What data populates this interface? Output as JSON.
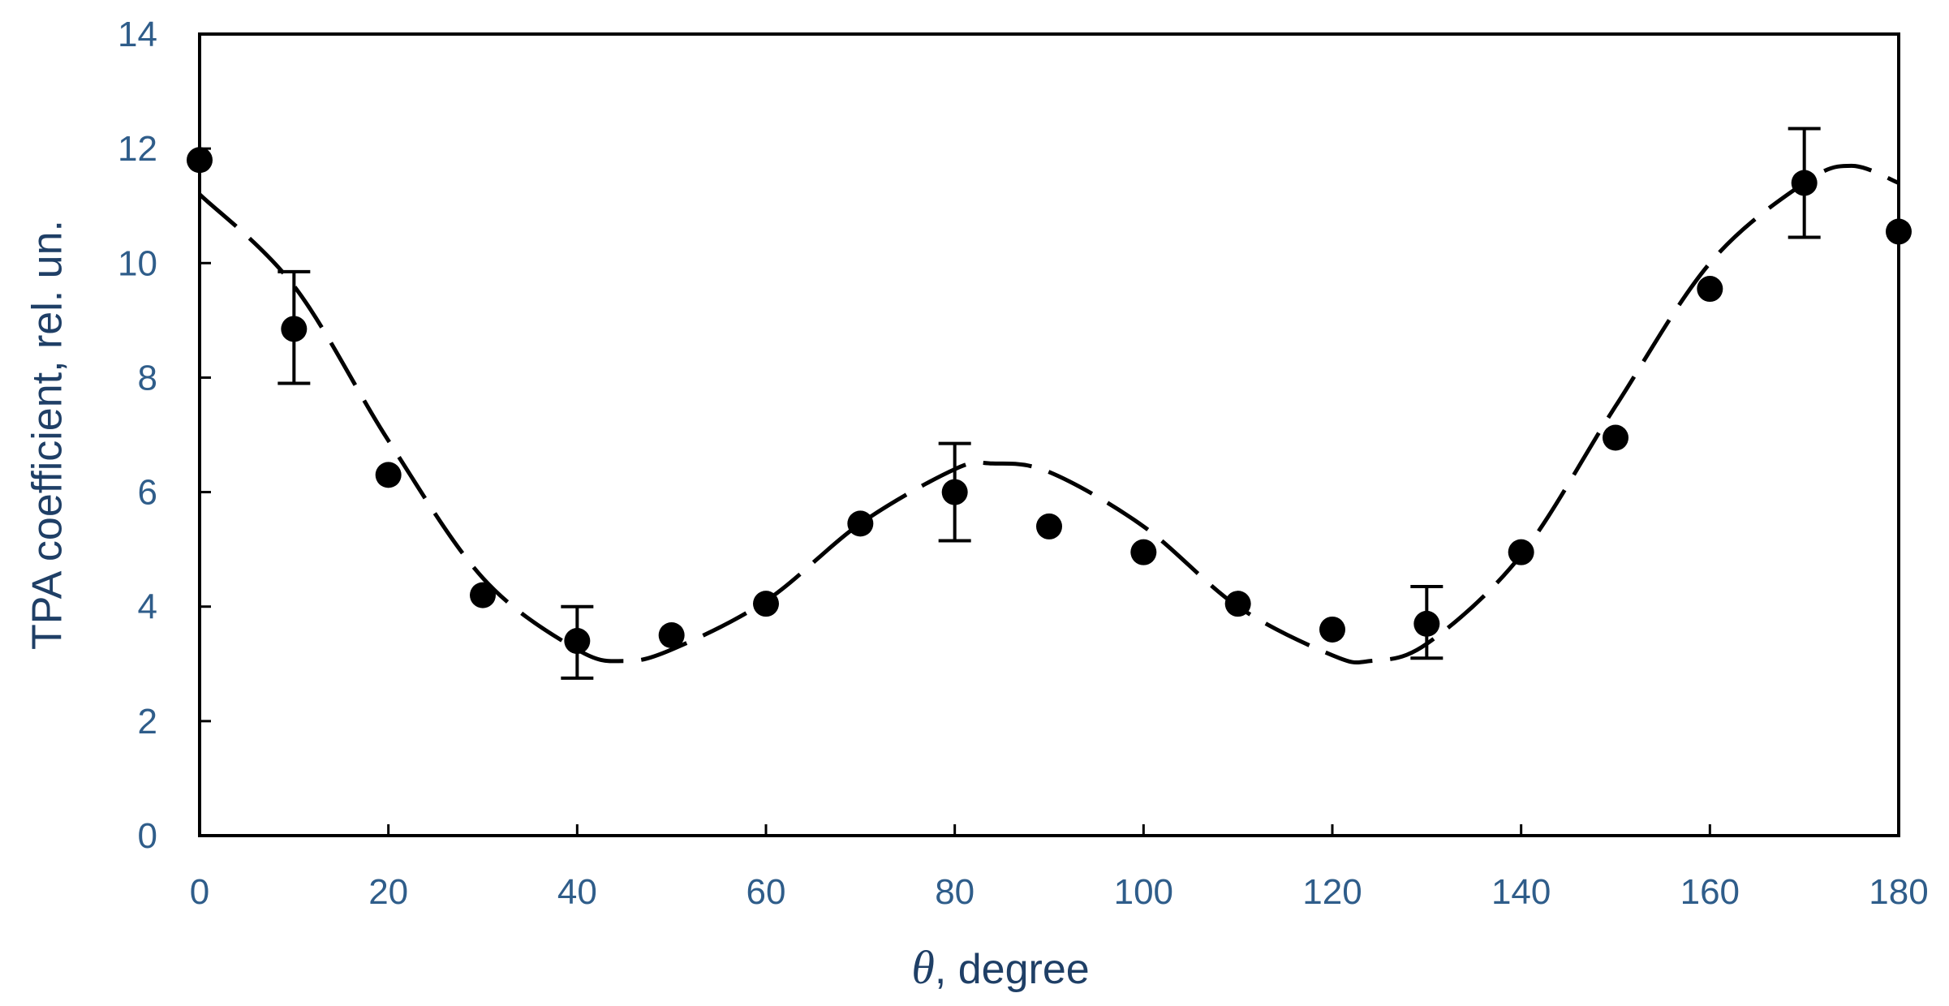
{
  "chart_data": {
    "type": "scatter",
    "title": "",
    "xlabel_symbol": "θ",
    "xlabel_rest": ", degree",
    "ylabel": "TPA coefficient, rel. un.",
    "xlim": [
      0,
      180
    ],
    "ylim": [
      0,
      14
    ],
    "x_ticks": [
      0,
      20,
      40,
      60,
      80,
      100,
      120,
      140,
      160,
      180
    ],
    "y_ticks": [
      0,
      2,
      4,
      6,
      8,
      10,
      12,
      14
    ],
    "grid": false,
    "legend": "none",
    "colors": {
      "tick_labels": "#2f5d8a",
      "axis_title": "#1f3f66",
      "data": "#000000",
      "frame": "#000000"
    },
    "series": [
      {
        "kind": "markers",
        "x": [
          0,
          10,
          20,
          30,
          40,
          50,
          60,
          70,
          80,
          90,
          100,
          110,
          120,
          130,
          140,
          150,
          160,
          170,
          180
        ],
        "y": [
          11.8,
          8.85,
          6.3,
          4.2,
          3.4,
          3.5,
          4.05,
          5.45,
          6.0,
          5.4,
          4.95,
          4.05,
          3.6,
          3.7,
          4.95,
          6.95,
          9.55,
          11.4,
          10.55
        ],
        "error_bars": [
          {
            "x": 10,
            "low": 7.9,
            "high": 9.85
          },
          {
            "x": 40,
            "low": 2.75,
            "high": 4.0
          },
          {
            "x": 80,
            "low": 5.15,
            "high": 6.85
          },
          {
            "x": 130,
            "low": 3.1,
            "high": 4.35
          },
          {
            "x": 170,
            "low": 10.45,
            "high": 12.35
          }
        ]
      },
      {
        "kind": "dashed-fit",
        "x": [
          0,
          10,
          20,
          30,
          40,
          45,
          50,
          60,
          70,
          80,
          84,
          90,
          100,
          110,
          120,
          124,
          130,
          140,
          150,
          160,
          170,
          175,
          180
        ],
        "y": [
          11.2,
          9.6,
          6.9,
          4.5,
          3.25,
          3.05,
          3.25,
          4.1,
          5.45,
          6.4,
          6.5,
          6.35,
          5.4,
          4.0,
          3.15,
          3.05,
          3.35,
          4.9,
          7.5,
          10.0,
          11.4,
          11.7,
          11.4
        ]
      }
    ]
  }
}
